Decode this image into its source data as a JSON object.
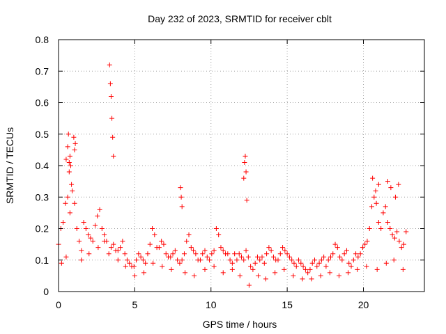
{
  "chart_data": {
    "type": "scatter",
    "title": "Day 232 of 2023, SRMTID for receiver cblt",
    "xlabel": "GPS time / hours",
    "ylabel": "SRMTID / TECUs",
    "xlim": [
      0,
      24
    ],
    "ylim": [
      0,
      0.8
    ],
    "x_ticks": [
      0,
      5,
      10,
      15,
      20
    ],
    "y_ticks": [
      0,
      0.1,
      0.2,
      0.3,
      0.4,
      0.5,
      0.6,
      0.7,
      0.8
    ],
    "x_tick_labels": [
      "0",
      "5",
      "10",
      "15",
      "20"
    ],
    "y_tick_labels": [
      "0",
      "0.1",
      "0.2",
      "0.3",
      "0.4",
      "0.5",
      "0.6",
      "0.7",
      "0.8"
    ],
    "grid": true,
    "marker": "plus",
    "color": "#ff0000",
    "series": [
      {
        "name": "SRMTID",
        "x": [
          0.0,
          0.15,
          0.3,
          0.45,
          0.6,
          0.75,
          0.9,
          1.05,
          1.2,
          1.35,
          1.5,
          1.65,
          1.8,
          1.95,
          2.1,
          2.25,
          2.4,
          2.55,
          2.7,
          2.85,
          3.0,
          3.15,
          3.3,
          3.45,
          3.6,
          3.75,
          3.9,
          4.05,
          4.2,
          4.35,
          4.5,
          4.65,
          4.8,
          4.95,
          5.1,
          5.25,
          5.4,
          5.55,
          5.7,
          5.85,
          6.0,
          6.15,
          6.3,
          6.45,
          6.6,
          6.75,
          6.9,
          7.05,
          7.2,
          7.35,
          7.5,
          7.65,
          7.8,
          7.95,
          8.1,
          8.25,
          8.4,
          8.55,
          8.7,
          8.85,
          9.0,
          9.15,
          9.3,
          9.45,
          9.6,
          9.75,
          9.9,
          10.05,
          10.2,
          10.35,
          10.5,
          10.65,
          10.8,
          10.95,
          11.1,
          11.25,
          11.4,
          11.55,
          11.7,
          11.85,
          12.0,
          12.15,
          12.3,
          12.45,
          12.6,
          12.75,
          12.9,
          13.05,
          13.2,
          13.35,
          13.5,
          13.65,
          13.8,
          13.95,
          14.1,
          14.25,
          14.4,
          14.55,
          14.7,
          14.85,
          15.0,
          15.15,
          15.3,
          15.45,
          15.6,
          15.75,
          15.9,
          16.05,
          16.2,
          16.35,
          16.5,
          16.65,
          16.8,
          16.95,
          17.1,
          17.25,
          17.4,
          17.55,
          17.7,
          17.85,
          18.0,
          18.15,
          18.3,
          18.45,
          18.6,
          18.75,
          18.9,
          19.05,
          19.2,
          19.35,
          19.5,
          19.65,
          19.8,
          19.95,
          20.1,
          20.25,
          20.4,
          20.55,
          20.7,
          20.85,
          21.0,
          21.15,
          21.3,
          21.45,
          21.6,
          21.75,
          21.9,
          22.05,
          22.2,
          22.35,
          22.5,
          22.65,
          22.8,
          0.5,
          0.6,
          0.65,
          0.7,
          0.7,
          0.75,
          0.8,
          0.85,
          1.0,
          1.05,
          1.1,
          3.35,
          3.4,
          3.45,
          3.5,
          3.55,
          3.6,
          8.0,
          8.05,
          8.1,
          12.15,
          12.2,
          12.25,
          12.3,
          12.35,
          20.6,
          20.8,
          21.0,
          21.6,
          21.8,
          22.1,
          22.3,
          0.2,
          0.5,
          1.5,
          2.0,
          2.6,
          3.0,
          3.9,
          4.4,
          5.0,
          5.6,
          6.2,
          6.8,
          7.4,
          8.3,
          8.9,
          9.6,
          10.2,
          10.8,
          11.4,
          11.9,
          12.5,
          13.1,
          13.6,
          14.2,
          14.8,
          15.4,
          16.0,
          16.6,
          17.2,
          17.8,
          18.4,
          19.0,
          19.6,
          20.2,
          20.9,
          21.5,
          22.0,
          22.6
        ],
        "y": [
          0.15,
          0.2,
          0.22,
          0.28,
          0.3,
          0.25,
          0.32,
          0.28,
          0.2,
          0.16,
          0.13,
          0.22,
          0.2,
          0.18,
          0.17,
          0.16,
          0.21,
          0.24,
          0.26,
          0.2,
          0.18,
          0.16,
          0.12,
          0.14,
          0.15,
          0.13,
          0.13,
          0.14,
          0.16,
          0.12,
          0.1,
          0.09,
          0.08,
          0.08,
          0.1,
          0.12,
          0.11,
          0.1,
          0.09,
          0.12,
          0.15,
          0.2,
          0.18,
          0.14,
          0.14,
          0.16,
          0.15,
          0.12,
          0.11,
          0.11,
          0.12,
          0.13,
          0.1,
          0.09,
          0.1,
          0.12,
          0.16,
          0.18,
          0.14,
          0.13,
          0.12,
          0.1,
          0.1,
          0.12,
          0.13,
          0.11,
          0.1,
          0.12,
          0.13,
          0.2,
          0.18,
          0.14,
          0.13,
          0.12,
          0.12,
          0.1,
          0.09,
          0.12,
          0.1,
          0.12,
          0.11,
          0.1,
          0.13,
          0.11,
          0.08,
          0.07,
          0.09,
          0.11,
          0.1,
          0.11,
          0.09,
          0.12,
          0.14,
          0.13,
          0.11,
          0.1,
          0.1,
          0.12,
          0.14,
          0.13,
          0.12,
          0.11,
          0.1,
          0.09,
          0.08,
          0.1,
          0.09,
          0.08,
          0.07,
          0.06,
          0.07,
          0.09,
          0.1,
          0.08,
          0.09,
          0.1,
          0.11,
          0.08,
          0.1,
          0.11,
          0.12,
          0.15,
          0.14,
          0.11,
          0.1,
          0.12,
          0.13,
          0.09,
          0.08,
          0.1,
          0.12,
          0.11,
          0.12,
          0.14,
          0.15,
          0.16,
          0.2,
          0.27,
          0.3,
          0.28,
          0.22,
          0.2,
          0.25,
          0.27,
          0.22,
          0.2,
          0.18,
          0.17,
          0.19,
          0.16,
          0.14,
          0.15,
          0.19,
          0.42,
          0.46,
          0.5,
          0.41,
          0.38,
          0.43,
          0.4,
          0.34,
          0.49,
          0.45,
          0.47,
          0.72,
          0.66,
          0.62,
          0.55,
          0.49,
          0.43,
          0.33,
          0.3,
          0.27,
          0.36,
          0.41,
          0.43,
          0.38,
          0.29,
          0.36,
          0.32,
          0.34,
          0.35,
          0.33,
          0.3,
          0.34,
          0.09,
          0.11,
          0.1,
          0.12,
          0.14,
          0.16,
          0.1,
          0.08,
          0.05,
          0.06,
          0.09,
          0.08,
          0.07,
          0.06,
          0.05,
          0.07,
          0.08,
          0.06,
          0.07,
          0.05,
          0.02,
          0.05,
          0.04,
          0.06,
          0.07,
          0.05,
          0.04,
          0.04,
          0.05,
          0.06,
          0.05,
          0.06,
          0.07,
          0.08,
          0.07,
          0.09,
          0.1,
          0.07
        ]
      }
    ]
  }
}
